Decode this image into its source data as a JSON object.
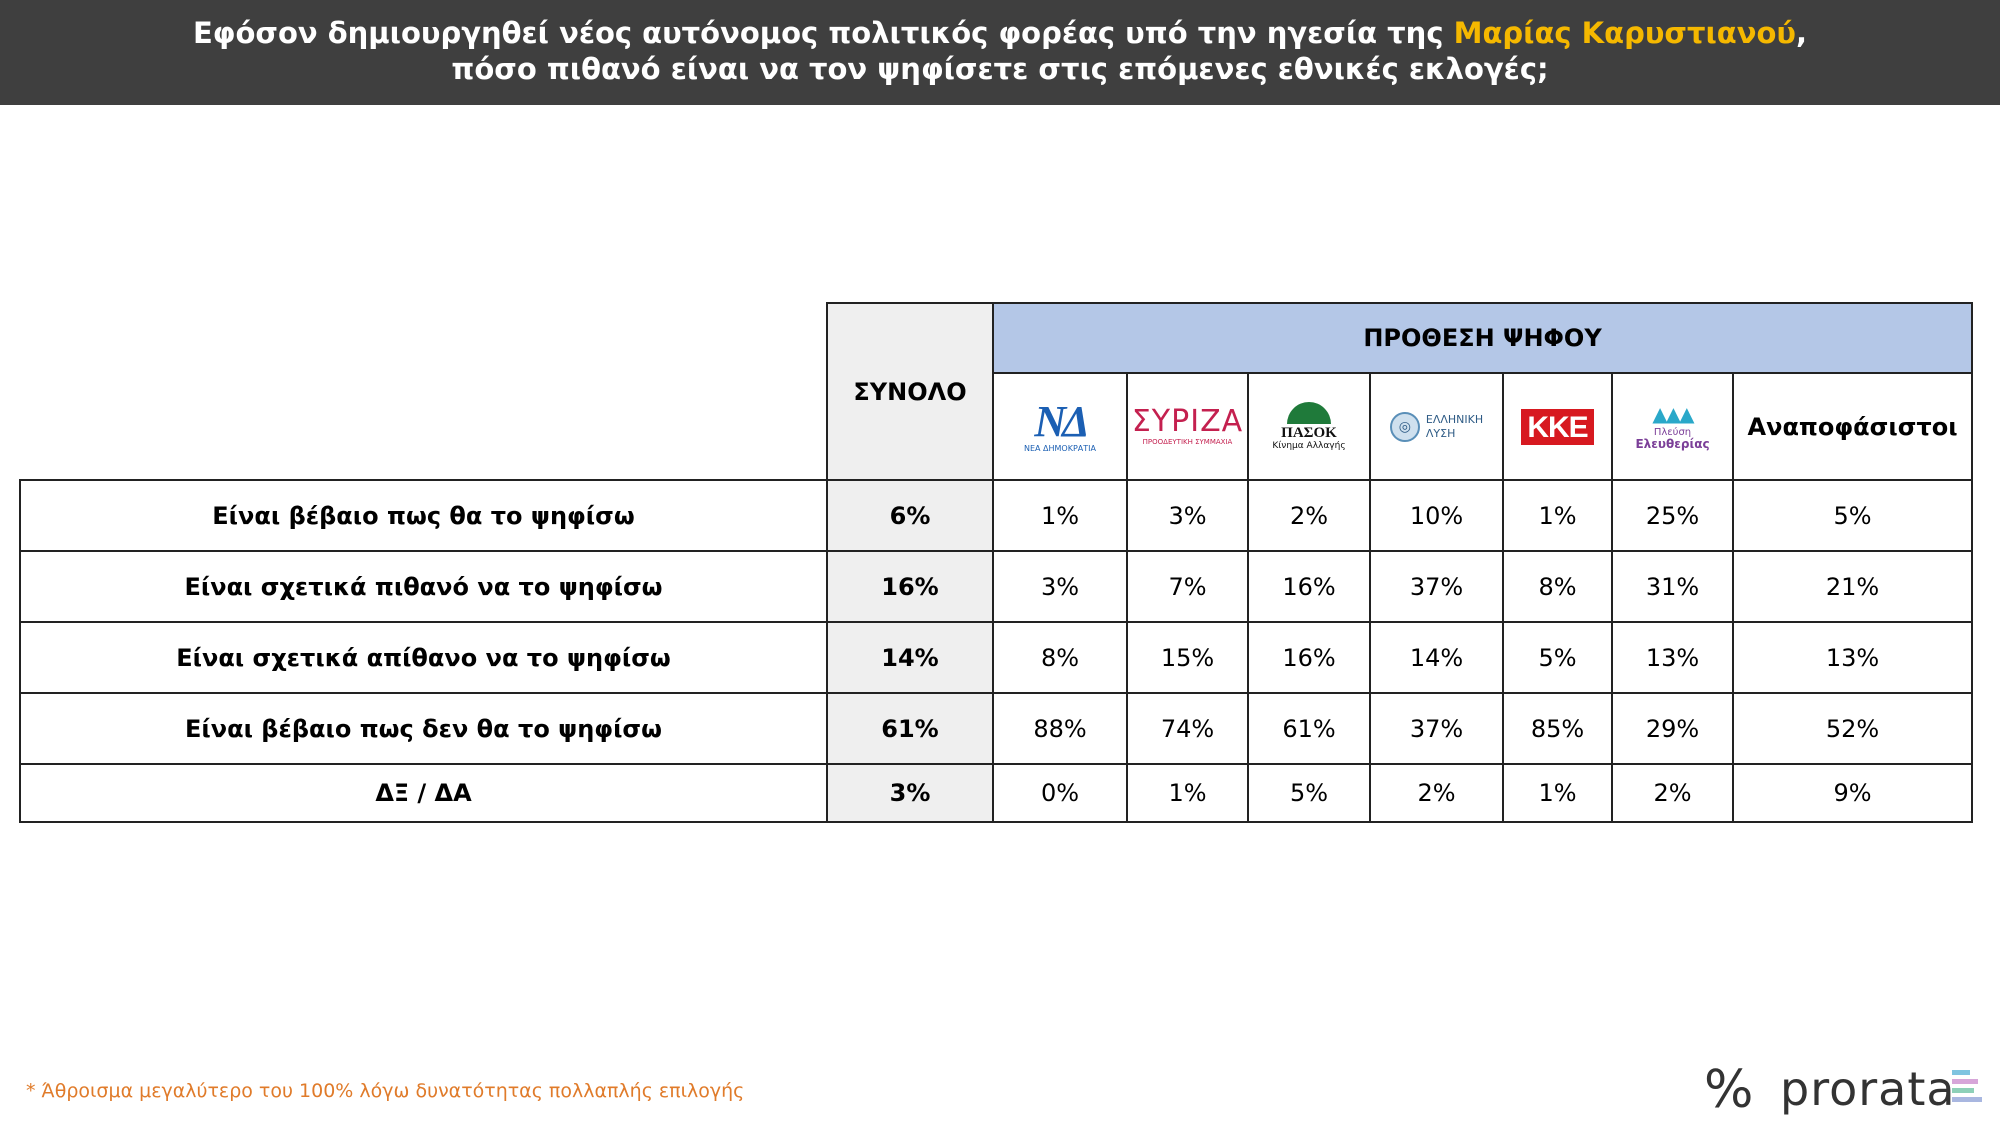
{
  "header": {
    "line1_prefix": "Εφόσον δημιουργηθεί νέος αυτόνομος πολιτικός φορέας υπό την ηγεσία της ",
    "line1_highlight": "Μαρίας Καρυστιανού",
    "line1_suffix": ",",
    "line2": "πόσο πιθανό είναι να τον ψηφίσετε στις επόμενες εθνικές εκλογές;",
    "highlight_color": "#f5b800",
    "background": "#3f3f3f"
  },
  "table": {
    "total_header": "ΣΥΝΟΛΟ",
    "vote_intention_header": "ΠΡΟΘΕΣΗ ΨΗΦΟΥ",
    "undecided_header": "Αναποφάσιστοι",
    "party_logos": {
      "nd": {
        "mark": "ΝΔ",
        "sub": "ΝΕΑ ΔΗΜΟΚΡΑΤΙΑ"
      },
      "syriza": {
        "mark": "ΣΥΡΙΖΑ",
        "sub": "ΠΡΟΟΔΕΥΤΙΚΗ ΣΥΜΜΑΧΙΑ"
      },
      "pasok": {
        "mark": "ΠΑΣΟΚ",
        "sub": "Κίνημα Αλλαγής"
      },
      "elliniki_lysi": {
        "line1": "ΕΛΛΗΝΙΚΗ",
        "line2": "ΛΥΣΗ"
      },
      "kke": {
        "mark": "ΚΚΕ"
      },
      "plefsi": {
        "line1": "Πλεύση",
        "line2": "Ελευθερίας"
      }
    },
    "rows": [
      {
        "label": "Είναι βέβαιο πως θα το ψηφίσω",
        "total": "6%",
        "values": [
          "1%",
          "3%",
          "2%",
          "10%",
          "1%",
          "25%",
          "5%"
        ]
      },
      {
        "label": "Είναι σχετικά πιθανό να το ψηφίσω",
        "total": "16%",
        "values": [
          "3%",
          "7%",
          "16%",
          "37%",
          "8%",
          "31%",
          "21%"
        ]
      },
      {
        "label": "Είναι σχετικά απίθανο να το ψηφίσω",
        "total": "14%",
        "values": [
          "8%",
          "15%",
          "16%",
          "14%",
          "5%",
          "13%",
          "13%"
        ]
      },
      {
        "label": "Είναι βέβαιο πως δεν θα το ψηφίσω",
        "total": "61%",
        "values": [
          "88%",
          "74%",
          "61%",
          "37%",
          "85%",
          "29%",
          "52%"
        ]
      },
      {
        "label": "ΔΞ / ΔΑ",
        "total": "3%",
        "values": [
          "0%",
          "1%",
          "5%",
          "2%",
          "1%",
          "2%",
          "9%"
        ]
      }
    ]
  },
  "footnote": "* Άθροισμα μεγαλύτερο του 100% λόγω δυνατότητας πολλαπλής επιλογής",
  "brand": {
    "symbol": "%",
    "name": "prorata"
  }
}
